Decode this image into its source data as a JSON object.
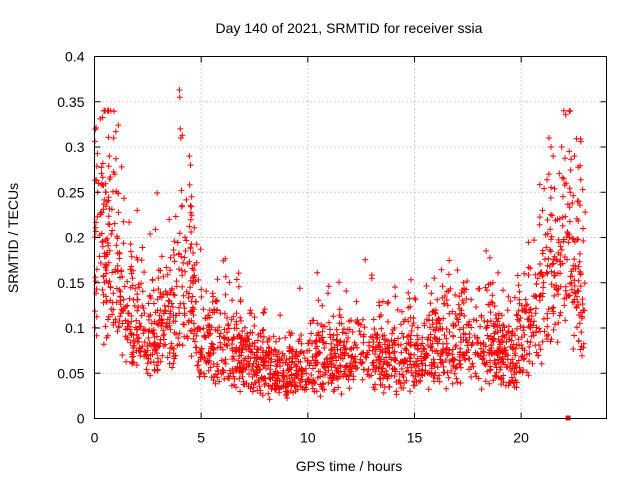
{
  "chart_data": {
    "type": "scatter",
    "title": "Day 140 of 2021, SRMTID for receiver ssia",
    "xlabel": "GPS time / hours",
    "ylabel": "SRMTID / TECUs",
    "xlim": [
      0,
      24
    ],
    "ylim": [
      0,
      0.4
    ],
    "xticks": [
      0,
      5,
      10,
      15,
      20
    ],
    "xtick_labels": [
      "0",
      "5",
      "10",
      "15",
      "20"
    ],
    "yticks": [
      0,
      0.05,
      0.1,
      0.15,
      0.2,
      0.25,
      0.3,
      0.35,
      0.4
    ],
    "ytick_labels": [
      "0",
      "0.05",
      "0.1",
      "0.15",
      "0.2",
      "0.25",
      "0.3",
      "0.35",
      "0.4"
    ],
    "grid": true,
    "marker": "plus",
    "series": [
      {
        "name": "SRMTID",
        "color": "#ff0000",
        "profile": [
          {
            "x": 0.0,
            "y": 0.17
          },
          {
            "x": 0.5,
            "y": 0.19
          },
          {
            "x": 1.0,
            "y": 0.16
          },
          {
            "x": 1.5,
            "y": 0.12
          },
          {
            "x": 2.0,
            "y": 0.1
          },
          {
            "x": 2.5,
            "y": 0.09
          },
          {
            "x": 3.0,
            "y": 0.1
          },
          {
            "x": 3.5,
            "y": 0.11
          },
          {
            "x": 4.0,
            "y": 0.14
          },
          {
            "x": 4.5,
            "y": 0.15
          },
          {
            "x": 5.0,
            "y": 0.09
          },
          {
            "x": 5.5,
            "y": 0.085
          },
          {
            "x": 6.0,
            "y": 0.08
          },
          {
            "x": 6.5,
            "y": 0.075
          },
          {
            "x": 7.0,
            "y": 0.07
          },
          {
            "x": 7.5,
            "y": 0.065
          },
          {
            "x": 8.0,
            "y": 0.06
          },
          {
            "x": 8.5,
            "y": 0.055
          },
          {
            "x": 9.0,
            "y": 0.05
          },
          {
            "x": 9.5,
            "y": 0.055
          },
          {
            "x": 10.0,
            "y": 0.06
          },
          {
            "x": 11.0,
            "y": 0.065
          },
          {
            "x": 12.0,
            "y": 0.07
          },
          {
            "x": 13.0,
            "y": 0.07
          },
          {
            "x": 14.0,
            "y": 0.07
          },
          {
            "x": 15.0,
            "y": 0.065
          },
          {
            "x": 16.0,
            "y": 0.08
          },
          {
            "x": 17.0,
            "y": 0.085
          },
          {
            "x": 18.0,
            "y": 0.08
          },
          {
            "x": 19.0,
            "y": 0.075
          },
          {
            "x": 19.8,
            "y": 0.07
          },
          {
            "x": 20.2,
            "y": 0.1
          },
          {
            "x": 20.8,
            "y": 0.12
          },
          {
            "x": 21.2,
            "y": 0.15
          },
          {
            "x": 21.7,
            "y": 0.18
          },
          {
            "x": 22.0,
            "y": 0.19
          },
          {
            "x": 22.5,
            "y": 0.17
          },
          {
            "x": 23.0,
            "y": 0.14
          }
        ],
        "spread": 0.35,
        "point_count": 2300,
        "peaks": [
          {
            "x": 0.15,
            "y": 0.25
          },
          {
            "x": 0.7,
            "y": 0.29
          },
          {
            "x": 0.9,
            "y": 0.31
          },
          {
            "x": 1.0,
            "y": 0.317
          },
          {
            "x": 0.95,
            "y": 0.27
          },
          {
            "x": 2.0,
            "y": 0.23
          },
          {
            "x": 3.5,
            "y": 0.22
          },
          {
            "x": 3.98,
            "y": 0.363
          },
          {
            "x": 4.0,
            "y": 0.355
          },
          {
            "x": 4.02,
            "y": 0.32
          },
          {
            "x": 4.05,
            "y": 0.31
          },
          {
            "x": 4.45,
            "y": 0.29
          },
          {
            "x": 4.5,
            "y": 0.28
          },
          {
            "x": 4.55,
            "y": 0.245
          },
          {
            "x": 4.5,
            "y": 0.235
          },
          {
            "x": 13.0,
            "y": 0.155
          },
          {
            "x": 14.1,
            "y": 0.135
          },
          {
            "x": 17.3,
            "y": 0.15
          },
          {
            "x": 21.3,
            "y": 0.31
          },
          {
            "x": 21.4,
            "y": 0.3
          },
          {
            "x": 21.5,
            "y": 0.29
          },
          {
            "x": 21.3,
            "y": 0.27
          },
          {
            "x": 21.9,
            "y": 0.3
          },
          {
            "x": 22.0,
            "y": 0.265
          },
          {
            "x": 22.3,
            "y": 0.25
          },
          {
            "x": 22.5,
            "y": 0.29
          },
          {
            "x": 22.7,
            "y": 0.24
          },
          {
            "x": 22.9,
            "y": 0.21
          },
          {
            "x": 21.0,
            "y": 0.23
          },
          {
            "x": 21.7,
            "y": 0.22
          }
        ],
        "outlier_square": {
          "x": 22.2,
          "y": 0.0
        }
      }
    ]
  }
}
